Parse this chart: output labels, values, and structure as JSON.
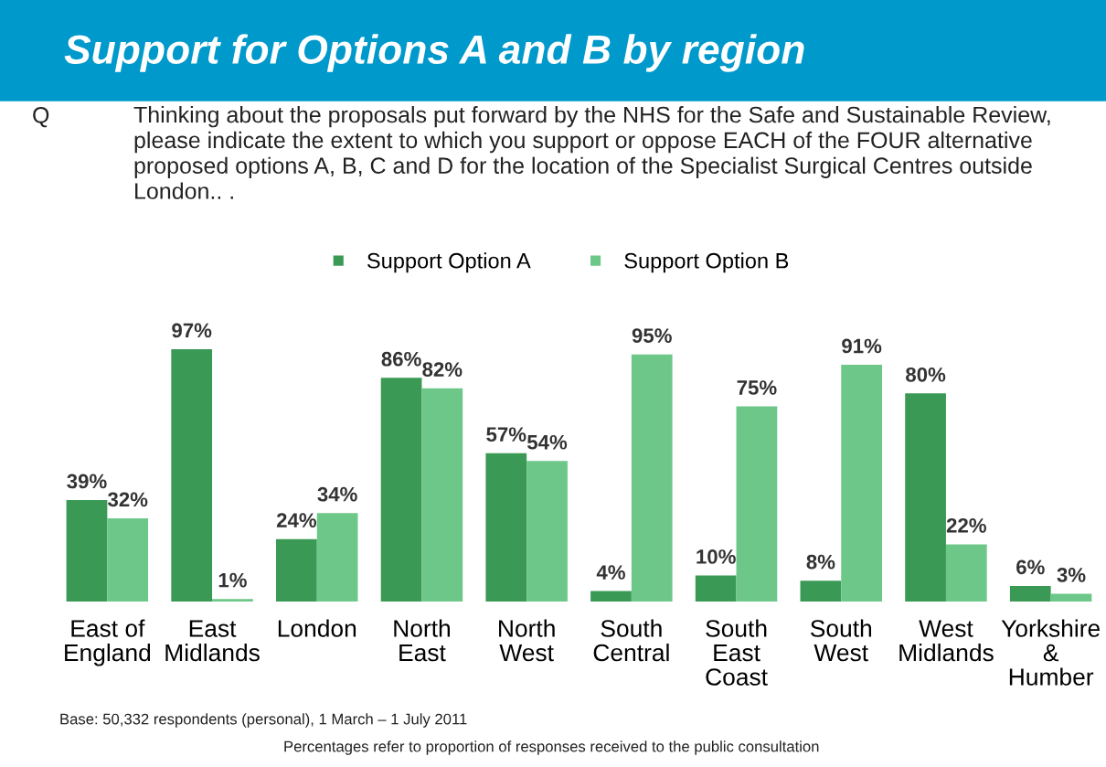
{
  "chart_data": {
    "type": "bar",
    "title": "Support for Options A and B by region",
    "subtitle": "Thinking about the proposals put forward by the NHS for the Safe and Sustainable Review, please indicate the extent to which you support or oppose EACH of the FOUR alternative proposed options A, B, C and D for the location of the Specialist Surgical Centres outside London.. .",
    "categories": [
      "East of\nEngland",
      "East\nMidlands",
      "London",
      "North\nEast",
      "North\nWest",
      "South\nCentral",
      "South\nEast\nCoast",
      "South\nWest",
      "West\nMidlands",
      "Yorkshire\n&\nHumber"
    ],
    "series": [
      {
        "name": "Support Option A",
        "color": "#3a9a55",
        "values": [
          39,
          97,
          24,
          86,
          57,
          4,
          10,
          8,
          80,
          6
        ],
        "value_labels": [
          "39%",
          "97%",
          "24%",
          "86%",
          "57%",
          "4%",
          "10%",
          "8%",
          "80%",
          "6%"
        ]
      },
      {
        "name": "Support Option B",
        "color": "#6dc788",
        "values": [
          32,
          1,
          34,
          82,
          54,
          95,
          75,
          91,
          22,
          3
        ],
        "value_labels": [
          "32%",
          "1%",
          "34%",
          "82%",
          "54%",
          "95%",
          "75%",
          "91%",
          "22%",
          "3%"
        ]
      }
    ],
    "legend": "top",
    "annotations": [
      "Q",
      "Base: 50,332 respondents (personal), 1 March – 1 July 2011",
      "Percentages refer to proportion of responses received to the public consultation"
    ]
  }
}
